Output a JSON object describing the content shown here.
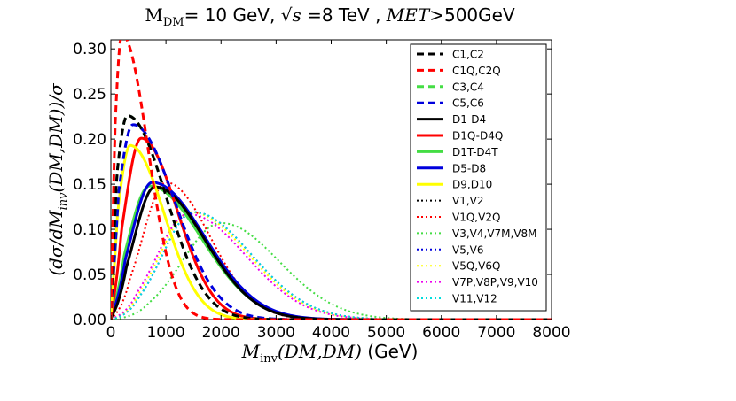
{
  "chart_data": {
    "type": "line",
    "title": {
      "mass_symbol": "M",
      "mass_subscript": "DM",
      "mass_value": "= 10 GeV, ",
      "sqrt_part": "√s",
      "energy_value": " =8 TeV , ",
      "met_symbol": "MET",
      "met_value": ">500GeV"
    },
    "xlabel": {
      "symbol": "M",
      "subscript": "inv",
      "args": "(DM,DM)",
      "unit": " (GeV)"
    },
    "ylabel": "(dσ/dM",
    "ylabel_subscript": "inv",
    "ylabel_tail": "(DM,DM))/σ",
    "xlim": [
      0,
      8000
    ],
    "ylim": [
      0,
      0.31
    ],
    "xticks": [
      "0",
      "1000",
      "2000",
      "3000",
      "4000",
      "5000",
      "6000",
      "7000",
      "8000"
    ],
    "yticks": [
      "0.00",
      "0.05",
      "0.10",
      "0.15",
      "0.20",
      "0.25",
      "0.30"
    ],
    "legend_position": "upper right",
    "series": [
      {
        "name": "C1,C2",
        "color": "#000000",
        "style": "dashed",
        "peak_x": 300,
        "peak_y": 0.226,
        "sigma_left": 230,
        "sigma_right": 700
      },
      {
        "name": "C1Q,C2Q",
        "color": "#ff0000",
        "style": "dashed",
        "peak_x": 200,
        "peak_y": 0.316,
        "sigma_left": 140,
        "sigma_right": 470
      },
      {
        "name": "C3,C4",
        "color": "#44dd44",
        "style": "dashed",
        "peak_x": 300,
        "peak_y": 0.226,
        "sigma_left": 230,
        "sigma_right": 700
      },
      {
        "name": "C5,C6",
        "color": "#0000dd",
        "style": "dashed",
        "peak_x": 400,
        "peak_y": 0.216,
        "sigma_left": 280,
        "sigma_right": 760
      },
      {
        "name": "D1-D4",
        "color": "#000000",
        "style": "solid",
        "peak_x": 800,
        "peak_y": 0.147,
        "sigma_left": 380,
        "sigma_right": 900
      },
      {
        "name": "D1Q-D4Q",
        "color": "#ff0000",
        "style": "solid",
        "peak_x": 550,
        "peak_y": 0.201,
        "sigma_left": 300,
        "sigma_right": 650
      },
      {
        "name": "D1T-D4T",
        "color": "#44dd44",
        "style": "solid",
        "peak_x": 700,
        "peak_y": 0.148,
        "sigma_left": 380,
        "sigma_right": 950
      },
      {
        "name": "D5-D8",
        "color": "#0000dd",
        "style": "solid",
        "peak_x": 750,
        "peak_y": 0.152,
        "sigma_left": 380,
        "sigma_right": 950
      },
      {
        "name": "D9,D10",
        "color": "#ffff00",
        "style": "solid",
        "peak_x": 350,
        "peak_y": 0.193,
        "sigma_left": 230,
        "sigma_right": 620
      },
      {
        "name": "V1,V2",
        "color": "#000000",
        "style": "dotted",
        "peak_x": 800,
        "peak_y": 0.147,
        "sigma_left": 380,
        "sigma_right": 900
      },
      {
        "name": "V1Q,V2Q",
        "color": "#ff0000",
        "style": "dotted",
        "peak_x": 1000,
        "peak_y": 0.152,
        "sigma_left": 420,
        "sigma_right": 800
      },
      {
        "name": "V3,V4,V7M,V8M",
        "color": "#44dd44",
        "style": "dotted",
        "peak_x": 2000,
        "peak_y": 0.107,
        "sigma_left": 700,
        "sigma_right": 1050
      },
      {
        "name": "V5,V6",
        "color": "#0000dd",
        "style": "dotted",
        "peak_x": 1500,
        "peak_y": 0.119,
        "sigma_left": 560,
        "sigma_right": 1050
      },
      {
        "name": "V5Q,V6Q",
        "color": "#ffff00",
        "style": "dotted",
        "peak_x": 1450,
        "peak_y": 0.119,
        "sigma_left": 560,
        "sigma_right": 1050
      },
      {
        "name": "V7P,V8P,V9,V10",
        "color": "#ee00ee",
        "style": "dotted",
        "peak_x": 1400,
        "peak_y": 0.117,
        "sigma_left": 560,
        "sigma_right": 1050
      },
      {
        "name": "V11,V12",
        "color": "#00dddd",
        "style": "dotted",
        "peak_x": 1500,
        "peak_y": 0.119,
        "sigma_left": 560,
        "sigma_right": 1050
      }
    ]
  }
}
